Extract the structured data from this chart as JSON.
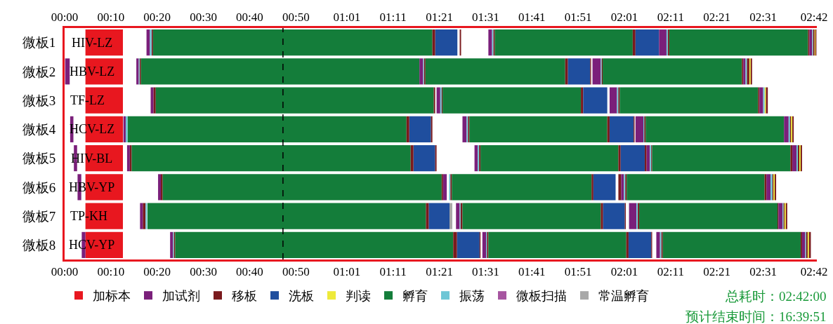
{
  "chart_data": {
    "type": "bar",
    "orientation": "horizontal",
    "categories": [
      "微板1",
      "微板2",
      "微板3",
      "微板4",
      "微板5",
      "微板6",
      "微板7",
      "微板8"
    ],
    "xlim": [
      0,
      162.6
    ],
    "xticks": [
      {
        "value": 0,
        "label": "00:00"
      },
      {
        "value": 10,
        "label": "00:10"
      },
      {
        "value": 20,
        "label": "00:20"
      },
      {
        "value": 30,
        "label": "00:30"
      },
      {
        "value": 40,
        "label": "00:40"
      },
      {
        "value": 50,
        "label": "00:50"
      },
      {
        "value": 61,
        "label": "01:01"
      },
      {
        "value": 71,
        "label": "01:11"
      },
      {
        "value": 81,
        "label": "01:21"
      },
      {
        "value": 91,
        "label": "01:31"
      },
      {
        "value": 101,
        "label": "01:41"
      },
      {
        "value": 111,
        "label": "01:51"
      },
      {
        "value": 121,
        "label": "02:01"
      },
      {
        "value": 131,
        "label": "02:11"
      },
      {
        "value": 141,
        "label": "02:21"
      },
      {
        "value": 151,
        "label": "02:31"
      },
      {
        "value": 162,
        "label": "02:42"
      }
    ],
    "x2lim": [
      0,
      162.6
    ],
    "x2ticks": [
      {
        "value": 0,
        "label": "00:00"
      },
      {
        "value": 10,
        "label": "00:10"
      },
      {
        "value": 20,
        "label": "00:20"
      },
      {
        "value": 30,
        "label": "00:30"
      },
      {
        "value": 40,
        "label": "00:40"
      },
      {
        "value": 50,
        "label": "00:50"
      },
      {
        "value": 61,
        "label": "01:01"
      },
      {
        "value": 71,
        "label": "01:11"
      },
      {
        "value": 81,
        "label": "01:21"
      },
      {
        "value": 91,
        "label": "01:31"
      },
      {
        "value": 101,
        "label": "01:41"
      },
      {
        "value": 111,
        "label": "01:51"
      },
      {
        "value": 121,
        "label": "02:01"
      },
      {
        "value": 131,
        "label": "02:11"
      },
      {
        "value": 141,
        "label": "02:21"
      },
      {
        "value": 151,
        "label": "02:31"
      },
      {
        "value": 162,
        "label": "02:42"
      }
    ],
    "grid": false,
    "legend": "bottom",
    "ref_lines": [
      {
        "axis": "x",
        "value": 47.2,
        "color": "#000000",
        "line_style": "dashed"
      }
    ],
    "annotations": [
      {
        "text": "HIV-LZ",
        "x": 5.9,
        "y": "微板1"
      },
      {
        "text": "HBV-LZ",
        "x": 5.9,
        "y": "微板2"
      },
      {
        "text": "TF-LZ",
        "x": 5.0,
        "y": "微板3"
      },
      {
        "text": "HCV-LZ",
        "x": 5.9,
        "y": "微板4"
      },
      {
        "text": "HIV-BL",
        "x": 5.9,
        "y": "微板5"
      },
      {
        "text": "HBV-YP",
        "x": 5.9,
        "y": "微板6"
      },
      {
        "text": "TP-KH",
        "x": 5.3,
        "y": "微板7"
      },
      {
        "text": "HCV-YP",
        "x": 5.9,
        "y": "微板8"
      },
      "总耗时：02:42:00",
      "预计结束时间：16:39:51"
    ],
    "series": [
      {
        "name": "加标本",
        "color": "#e8171f",
        "base": [
          4.5,
          4.5,
          4.5,
          4.5,
          4.5,
          4.5,
          4.5,
          4.5
        ],
        "values": [
          8.1,
          8.1,
          8.1,
          8.1,
          8.1,
          8.1,
          8.1,
          8.1
        ]
      },
      {
        "name": "加试剂",
        "color": "#7a1f7a",
        "base": [
          null,
          0.1,
          null,
          1.2,
          2.0,
          2.8,
          null,
          3.7
        ],
        "values": [
          null,
          1.0,
          null,
          0.7,
          0.7,
          0.8,
          null,
          0.8
        ]
      },
      {
        "name": "移板",
        "color": "#7a1a1d",
        "base": [
          18.8,
          16.2,
          19.2,
          null,
          14.1,
          20.8,
          16.9,
          23.6
        ],
        "values": [
          0.3,
          0.3,
          0.5,
          null,
          0.4,
          0.4,
          0.6,
          0.3
        ]
      },
      {
        "name": "洗板",
        "color": "#1f4e9e",
        "base": [
          80.1,
          null,
          null,
          74.5,
          75.4,
          null,
          78.7,
          84.8
        ],
        "values": [
          4.8,
          null,
          null,
          4.7,
          4.7,
          null,
          4.5,
          4.9
        ]
      },
      {
        "name": "判读",
        "color": "#eeea3a",
        "base": [
          162.1,
          148.0,
          151.3,
          157.0,
          158.8,
          153.2,
          155.6,
          160.6
        ],
        "values": [
          0.2,
          0.3,
          0.3,
          0.3,
          0.3,
          0.3,
          0.3,
          0.3
        ]
      },
      {
        "name": "孵育",
        "color": "#147d3a",
        "base": [
          19.1,
          16.5,
          19.7,
          13.6,
          14.5,
          21.2,
          17.9,
          23.9
        ],
        "values": [
          60.4,
          60.2,
          60.1,
          60.3,
          60.3,
          60.3,
          60.2,
          60.1
        ]
      },
      {
        "name": "振荡",
        "color": "#6ec6d6",
        "base": [
          18.4,
          16.0,
          null,
          13.2,
          null,
          null,
          17.5,
          23.4
        ],
        "values": [
          0.4,
          0.2,
          null,
          0.4,
          null,
          null,
          0.3,
          0.2
        ]
      },
      {
        "name": "微板扫描",
        "color": "#a655a0",
        "values": [
          null,
          null,
          null,
          null,
          null,
          null,
          null,
          null
        ]
      },
      {
        "name": "常温孵育",
        "color": "#a8a8a8",
        "base": [
          null,
          null,
          null,
          null,
          null,
          null,
          83.2,
          null
        ],
        "values": [
          null,
          null,
          null,
          null,
          null,
          null,
          0.6,
          null
        ]
      },
      {
        "color": "#7a1f7a",
        "base": [
          17.7,
          15.5,
          18.6,
          12.7,
          13.5,
          20.2,
          16.3,
          22.8
        ],
        "values": [
          0.7,
          0.5,
          0.6,
          0.5,
          0.6,
          0.6,
          0.6,
          0.6
        ]
      },
      {
        "color": "#7a1a1d",
        "base": [
          79.5,
          null,
          79.8,
          73.9,
          74.8,
          81.5,
          78.1,
          84.0
        ],
        "values": [
          0.6,
          null,
          0.3,
          0.6,
          0.6,
          0.3,
          0.6,
          0.8
        ]
      },
      {
        "color": "#7a1a1d",
        "base": [
          85.4,
          null,
          null,
          79.2,
          80.1,
          null,
          null,
          89.7
        ],
        "values": [
          0.3,
          null,
          null,
          0.3,
          0.3,
          null,
          null,
          0.2
        ]
      },
      {
        "color": "#7a1f7a",
        "base": [
          91.6,
          76.7,
          80.4,
          86.0,
          88.6,
          81.8,
          84.6,
          90.3
        ],
        "values": [
          0.8,
          0.8,
          0.8,
          0.9,
          0.7,
          0.8,
          0.8,
          0.8
        ]
      },
      {
        "color": "#6ec6d6",
        "base": [
          92.4,
          77.5,
          81.2,
          86.9,
          89.3,
          83.1,
          85.4,
          91.1
        ],
        "values": [
          0.3,
          0.2,
          0.3,
          0.3,
          0.3,
          0.3,
          0.2,
          0.2
        ]
      },
      {
        "color": "#7a1a1d",
        "base": [
          92.7,
          77.7,
          81.5,
          87.2,
          89.6,
          83.4,
          85.6,
          91.3
        ],
        "values": [
          0.3,
          0.3,
          0.2,
          0.3,
          0.3,
          0.3,
          0.4,
          0.3
        ]
      },
      {
        "color": "#147d3a",
        "base": [
          93.0,
          78.0,
          81.7,
          87.5,
          89.9,
          83.7,
          86.0,
          91.6
        ],
        "values": [
          29.8,
          30.2,
          29.9,
          29.8,
          29.8,
          30.2,
          29.9,
          29.8
        ]
      },
      {
        "color": "#7a1a1d",
        "base": [
          122.8,
          108.2,
          111.6,
          117.3,
          119.7,
          113.9,
          115.9,
          121.4
        ],
        "values": [
          0.6,
          0.6,
          0.5,
          0.5,
          0.5,
          0.4,
          0.5,
          0.5
        ]
      },
      {
        "color": "#1f4e9e",
        "base": [
          123.4,
          108.8,
          112.1,
          117.8,
          120.2,
          114.3,
          116.4,
          121.9
        ],
        "values": [
          5.1,
          4.8,
          5.2,
          5.2,
          5.2,
          4.8,
          4.7,
          4.9
        ]
      },
      {
        "color": "#7a1a1d",
        "base": [
          null,
          113.6,
          null,
          123.0,
          125.4,
          119.7,
          121.1,
          126.8
        ],
        "values": [
          null,
          0.2,
          null,
          0.2,
          0.4,
          0.6,
          0.2,
          0.2
        ]
      },
      {
        "color": "#7a1f7a",
        "base": [
          128.5,
          114.1,
          117.8,
          123.4,
          125.8,
          120.3,
          122.0,
          127.9
        ],
        "values": [
          1.6,
          1.8,
          1.6,
          1.7,
          0.7,
          0.6,
          1.6,
          0.8
        ]
      },
      {
        "color": "#6ec6d6",
        "base": [
          130.1,
          115.9,
          119.4,
          125.1,
          126.5,
          120.9,
          123.6,
          128.7
        ],
        "values": [
          0.3,
          0.2,
          0.3,
          0.2,
          0.3,
          0.3,
          0.3,
          0.3
        ]
      },
      {
        "color": "#7a1a1d",
        "base": [
          130.4,
          116.1,
          119.7,
          125.3,
          126.8,
          121.2,
          123.9,
          129.0
        ],
        "values": [
          0.3,
          0.2,
          0.3,
          0.3,
          0.2,
          0.3,
          0.3,
          0.3
        ]
      },
      {
        "color": "#147d3a",
        "base": [
          130.7,
          116.3,
          120.0,
          125.6,
          127.0,
          121.5,
          124.2,
          129.3
        ],
        "values": [
          30.0,
          30.1,
          29.9,
          29.9,
          29.9,
          29.8,
          29.9,
          29.8
        ]
      },
      {
        "color": "#7a1a1d",
        "base": [
          160.7,
          146.4,
          149.9,
          null,
          156.9,
          151.3,
          154.1,
          159.1
        ],
        "values": [
          0.3,
          0.3,
          0.3,
          null,
          0.4,
          0.4,
          0.2,
          0.3
        ]
      },
      {
        "color": "#7a1f7a",
        "base": [
          161.0,
          146.7,
          150.2,
          155.5,
          157.3,
          151.7,
          154.3,
          159.4
        ],
        "values": [
          0.6,
          0.5,
          0.8,
          1.0,
          0.9,
          0.9,
          0.9,
          0.7
        ]
      },
      {
        "color": "#6ec6d6",
        "base": [
          161.6,
          147.2,
          151.0,
          156.5,
          158.2,
          152.6,
          155.2,
          160.1
        ],
        "values": [
          0.2,
          0.3,
          0.3,
          0.3,
          0.3,
          0.4,
          0.2,
          0.2
        ]
      },
      {
        "color": "#7a1a1d",
        "base": [
          161.8,
          147.5,
          null,
          156.8,
          158.5,
          153.0,
          155.4,
          160.3
        ],
        "values": [
          0.3,
          0.5,
          null,
          0.2,
          0.3,
          0.2,
          0.2,
          0.3
        ]
      },
      {
        "color": "#7a1a1d",
        "base": [
          162.3,
          148.3,
          151.6,
          157.3,
          159.1,
          153.5,
          155.9,
          160.9
        ],
        "values": [
          0.2,
          0.3,
          0.4,
          0.3,
          0.3,
          0.3,
          0.3,
          0.4
        ]
      }
    ]
  }
}
